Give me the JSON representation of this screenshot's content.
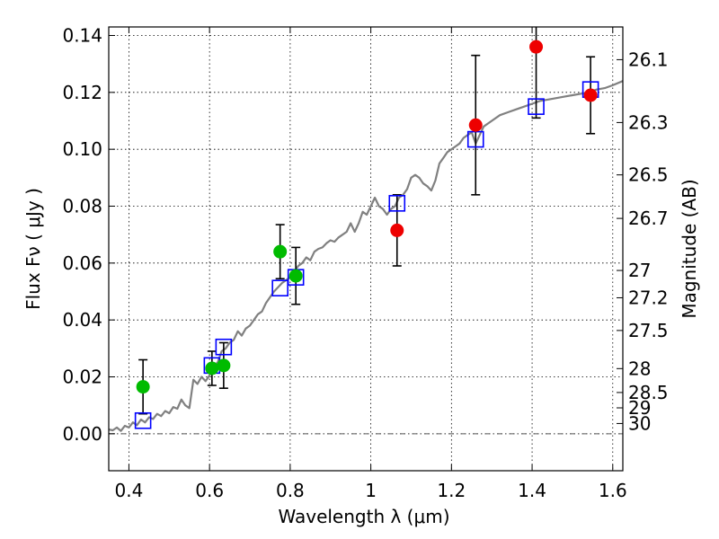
{
  "chart_data": {
    "type": "scatter",
    "xlabel": "Wavelength  λ (μm)",
    "ylabel": "Flux  Fν  ( μJy )",
    "ylabel_right": "Magnitude (AB)",
    "xlim": [
      0.35,
      1.625
    ],
    "ylim": [
      -0.013,
      0.143
    ],
    "grid": true,
    "x_ticks": [
      0.4,
      0.6,
      0.8,
      1.0,
      1.2,
      1.4,
      1.6
    ],
    "x_tick_labels": [
      "0.4",
      "0.6",
      "0.8",
      "1",
      "1.2",
      "1.4",
      "1.6"
    ],
    "y_ticks": [
      0.0,
      0.02,
      0.04,
      0.06,
      0.08,
      0.1,
      0.12,
      0.14
    ],
    "y_tick_labels": [
      "0.00",
      "0.02",
      "0.04",
      "0.06",
      "0.08",
      "0.10",
      "0.12",
      "0.14"
    ],
    "right_ticks": [
      {
        "label": "26.1",
        "flux": 0.1315
      },
      {
        "label": "26.3",
        "flux": 0.1094
      },
      {
        "label": "26.5",
        "flux": 0.091
      },
      {
        "label": "26.7",
        "flux": 0.0757
      },
      {
        "label": "27",
        "flux": 0.0574
      },
      {
        "label": "27.2",
        "flux": 0.0478
      },
      {
        "label": "27.5",
        "flux": 0.0363
      },
      {
        "label": "28",
        "flux": 0.0229
      },
      {
        "label": "28.5",
        "flux": 0.0145
      },
      {
        "label": "29",
        "flux": 0.0091
      },
      {
        "label": "30",
        "flux": 0.0036
      }
    ],
    "series": [
      {
        "kind": "model-spectrum",
        "color": "#808080",
        "points": [
          [
            0.35,
            0.0015
          ],
          [
            0.36,
            0.0012
          ],
          [
            0.37,
            0.0022
          ],
          [
            0.38,
            0.001
          ],
          [
            0.39,
            0.0028
          ],
          [
            0.4,
            0.0022
          ],
          [
            0.41,
            0.004
          ],
          [
            0.42,
            0.003
          ],
          [
            0.43,
            0.005
          ],
          [
            0.44,
            0.004
          ],
          [
            0.45,
            0.0058
          ],
          [
            0.46,
            0.0052
          ],
          [
            0.47,
            0.007
          ],
          [
            0.48,
            0.0062
          ],
          [
            0.49,
            0.008
          ],
          [
            0.5,
            0.0072
          ],
          [
            0.51,
            0.0094
          ],
          [
            0.52,
            0.0088
          ],
          [
            0.53,
            0.012
          ],
          [
            0.54,
            0.01
          ],
          [
            0.55,
            0.009
          ],
          [
            0.56,
            0.019
          ],
          [
            0.57,
            0.0175
          ],
          [
            0.58,
            0.02
          ],
          [
            0.59,
            0.0185
          ],
          [
            0.6,
            0.0205
          ],
          [
            0.61,
            0.024
          ],
          [
            0.62,
            0.025
          ],
          [
            0.63,
            0.029
          ],
          [
            0.64,
            0.03
          ],
          [
            0.65,
            0.032
          ],
          [
            0.66,
            0.033
          ],
          [
            0.67,
            0.036
          ],
          [
            0.68,
            0.0345
          ],
          [
            0.69,
            0.037
          ],
          [
            0.7,
            0.038
          ],
          [
            0.71,
            0.04
          ],
          [
            0.72,
            0.042
          ],
          [
            0.73,
            0.043
          ],
          [
            0.74,
            0.046
          ],
          [
            0.75,
            0.048
          ],
          [
            0.76,
            0.05
          ],
          [
            0.77,
            0.0515
          ],
          [
            0.78,
            0.053
          ],
          [
            0.79,
            0.054
          ],
          [
            0.8,
            0.055
          ],
          [
            0.81,
            0.057
          ],
          [
            0.82,
            0.059
          ],
          [
            0.83,
            0.06
          ],
          [
            0.84,
            0.062
          ],
          [
            0.85,
            0.061
          ],
          [
            0.86,
            0.064
          ],
          [
            0.87,
            0.065
          ],
          [
            0.88,
            0.0655
          ],
          [
            0.89,
            0.067
          ],
          [
            0.9,
            0.068
          ],
          [
            0.91,
            0.0675
          ],
          [
            0.92,
            0.069
          ],
          [
            0.93,
            0.07
          ],
          [
            0.94,
            0.071
          ],
          [
            0.95,
            0.074
          ],
          [
            0.96,
            0.071
          ],
          [
            0.97,
            0.074
          ],
          [
            0.98,
            0.078
          ],
          [
            0.99,
            0.077
          ],
          [
            1.0,
            0.08
          ],
          [
            1.01,
            0.083
          ],
          [
            1.02,
            0.08
          ],
          [
            1.03,
            0.079
          ],
          [
            1.04,
            0.077
          ],
          [
            1.05,
            0.079
          ],
          [
            1.06,
            0.08
          ],
          [
            1.07,
            0.083
          ],
          [
            1.08,
            0.084
          ],
          [
            1.09,
            0.086
          ],
          [
            1.1,
            0.09
          ],
          [
            1.11,
            0.091
          ],
          [
            1.12,
            0.09
          ],
          [
            1.13,
            0.088
          ],
          [
            1.14,
            0.087
          ],
          [
            1.15,
            0.0855
          ],
          [
            1.16,
            0.089
          ],
          [
            1.17,
            0.095
          ],
          [
            1.18,
            0.097
          ],
          [
            1.19,
            0.099
          ],
          [
            1.2,
            0.1
          ],
          [
            1.21,
            0.101
          ],
          [
            1.22,
            0.102
          ],
          [
            1.23,
            0.104
          ],
          [
            1.24,
            0.105
          ],
          [
            1.25,
            0.106
          ],
          [
            1.26,
            0.102
          ],
          [
            1.27,
            0.105
          ],
          [
            1.28,
            0.108
          ],
          [
            1.3,
            0.11
          ],
          [
            1.32,
            0.112
          ],
          [
            1.34,
            0.113
          ],
          [
            1.36,
            0.114
          ],
          [
            1.38,
            0.115
          ],
          [
            1.4,
            0.116
          ],
          [
            1.42,
            0.117
          ],
          [
            1.44,
            0.1175
          ],
          [
            1.46,
            0.118
          ],
          [
            1.48,
            0.1185
          ],
          [
            1.5,
            0.119
          ],
          [
            1.52,
            0.1195
          ],
          [
            1.54,
            0.12
          ],
          [
            1.56,
            0.121
          ],
          [
            1.58,
            0.1215
          ],
          [
            1.6,
            0.1225
          ],
          [
            1.625,
            0.124
          ]
        ]
      },
      {
        "kind": "model-photometry",
        "marker": "square",
        "color": "#0000ff",
        "points": [
          [
            0.435,
            0.0046
          ],
          [
            0.606,
            0.024
          ],
          [
            0.635,
            0.0305
          ],
          [
            0.775,
            0.0512
          ],
          [
            0.814,
            0.055
          ],
          [
            1.065,
            0.081
          ],
          [
            1.26,
            0.1035
          ],
          [
            1.41,
            0.115
          ],
          [
            1.545,
            0.121
          ]
        ]
      },
      {
        "kind": "observed-optical",
        "marker": "circle",
        "color": "#00bb00",
        "points": [
          {
            "x": 0.435,
            "y": 0.0165,
            "yerr": 0.0095
          },
          {
            "x": 0.606,
            "y": 0.023,
            "yerr": 0.006
          },
          {
            "x": 0.635,
            "y": 0.024,
            "yerr": 0.008
          },
          {
            "x": 0.775,
            "y": 0.064,
            "yerr": 0.0095
          },
          {
            "x": 0.814,
            "y": 0.0555,
            "yerr": 0.01
          }
        ]
      },
      {
        "kind": "observed-infrared",
        "marker": "circle",
        "color": "#ee0000",
        "points": [
          {
            "x": 1.065,
            "y": 0.0715,
            "yerr": 0.0125
          },
          {
            "x": 1.26,
            "y": 0.1085,
            "yerr": 0.0245
          },
          {
            "x": 1.41,
            "y": 0.136,
            "yerr": 0.025
          },
          {
            "x": 1.545,
            "y": 0.119,
            "yerr": 0.0135
          }
        ]
      }
    ]
  }
}
